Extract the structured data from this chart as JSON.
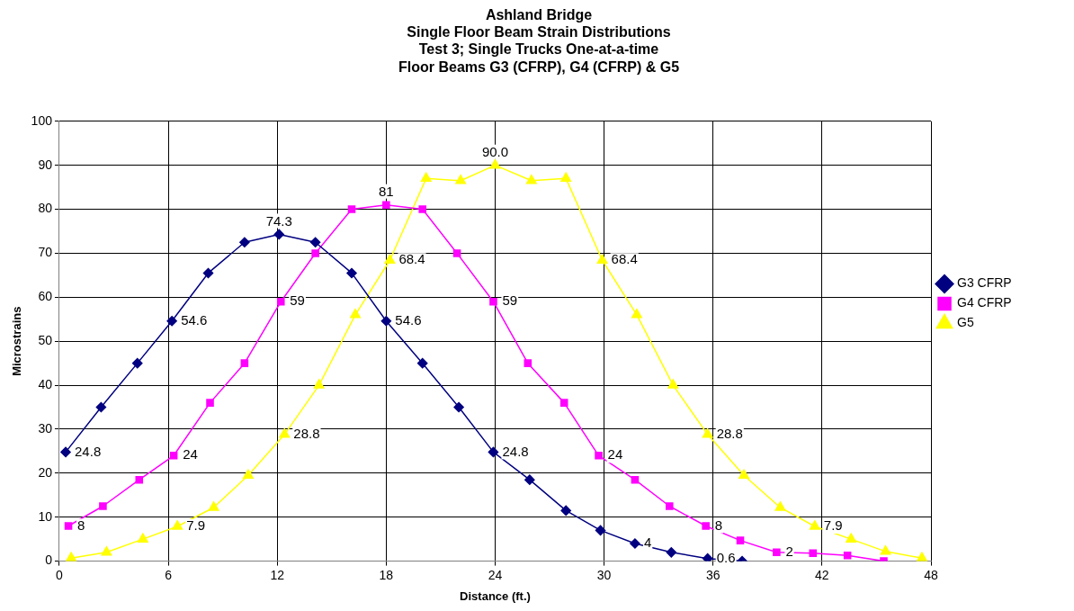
{
  "chart_data": {
    "type": "line",
    "title": "Ashland Bridge\nSingle Floor Beam Strain Distributions\nTest 3; Single Trucks One-at-a-time\nFloor Beams G3 (CFRP), G4 (CFRP) & G5",
    "xlabel": "Distance (ft.)",
    "ylabel": "Microstrains",
    "xlim": [
      0,
      48
    ],
    "xticks": [
      0,
      6,
      12,
      18,
      24,
      30,
      36,
      42,
      48
    ],
    "ylim": [
      0,
      100
    ],
    "yticks": [
      0,
      10,
      20,
      30,
      40,
      50,
      60,
      70,
      80,
      90,
      100
    ],
    "grid": true,
    "legend": "right",
    "line_style": "solid",
    "series": [
      {
        "name": "G3 CFRP",
        "color": "#000080",
        "marker": "diamond",
        "x": [
          0.35,
          2.3,
          4.3,
          6.2,
          8.2,
          10.2,
          12.1,
          14.1,
          16.1,
          18.0,
          20.0,
          22.0,
          23.9,
          25.9,
          27.9,
          29.8,
          31.7,
          33.7,
          35.7,
          37.6
        ],
        "values": [
          24.8,
          35,
          45,
          54.6,
          65.5,
          72.5,
          74.3,
          72.5,
          65.5,
          54.6,
          45,
          35,
          24.8,
          18.5,
          11.5,
          7,
          4,
          2,
          0.6,
          0
        ],
        "value_labels": [
          "24.8",
          null,
          null,
          "54.6",
          null,
          null,
          "74.3",
          null,
          null,
          "54.6",
          null,
          null,
          "24.8",
          null,
          null,
          null,
          "4",
          null,
          "0.6",
          null
        ]
      },
      {
        "name": "G4 CFRP",
        "color": "#ff00ff",
        "marker": "square",
        "x": [
          0.5,
          2.4,
          4.4,
          6.3,
          8.3,
          10.2,
          12.2,
          14.1,
          16.1,
          18.0,
          20.0,
          21.9,
          23.9,
          25.8,
          27.8,
          29.7,
          31.7,
          33.6,
          35.6,
          37.5,
          39.5,
          41.5,
          43.4,
          45.4
        ],
        "values": [
          8,
          12.5,
          18.5,
          24,
          36,
          45,
          59,
          70,
          80,
          81,
          80,
          70,
          59,
          45,
          36,
          24,
          18.5,
          12.5,
          8,
          4.7,
          2,
          1.8,
          1.3,
          0
        ],
        "value_labels": [
          "8",
          null,
          null,
          "24",
          null,
          null,
          "59",
          null,
          null,
          "81",
          null,
          null,
          "59",
          null,
          null,
          "24",
          null,
          null,
          "8",
          null,
          "2",
          null,
          null,
          null
        ]
      },
      {
        "name": "G5",
        "color": "#ffff00",
        "marker": "triangle",
        "x": [
          0.65,
          2.6,
          4.6,
          6.5,
          8.5,
          10.4,
          12.4,
          14.3,
          16.3,
          18.2,
          20.2,
          22.1,
          24.0,
          26.0,
          27.9,
          29.9,
          31.8,
          33.8,
          35.7,
          37.7,
          39.7,
          41.6,
          43.6,
          45.5,
          47.5
        ],
        "values": [
          0.7,
          2,
          5,
          7.9,
          12.2,
          19.5,
          28.8,
          40,
          56,
          68.4,
          87,
          86.5,
          90,
          86.5,
          87,
          68.4,
          56,
          40,
          28.8,
          19.5,
          12.2,
          7.9,
          5,
          2.2,
          0.7
        ],
        "value_labels": [
          null,
          null,
          null,
          "7.9",
          null,
          null,
          "28.8",
          null,
          null,
          "68.4",
          null,
          null,
          "90.0",
          null,
          null,
          "68.4",
          null,
          null,
          "28.8",
          null,
          null,
          "7.9",
          null,
          null,
          null
        ]
      }
    ]
  }
}
